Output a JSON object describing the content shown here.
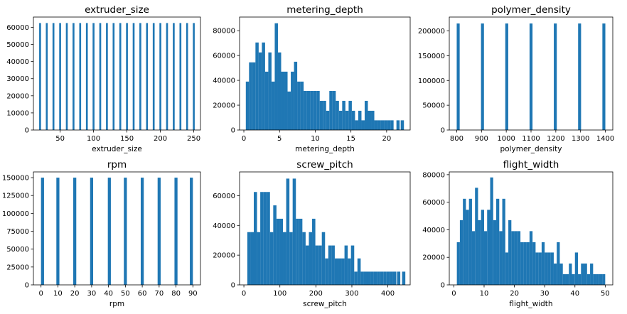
{
  "colors": {
    "bar": "#1f77b4",
    "axis": "#000000",
    "background": "#ffffff"
  },
  "chart_data": [
    {
      "type": "bar",
      "title": "extruder_size",
      "xlabel": "extruder_size",
      "ylabel": "",
      "xlim": [
        10,
        260
      ],
      "ylim": [
        0,
        66000
      ],
      "xticks": [
        50,
        100,
        150,
        200,
        250
      ],
      "yticks": [
        0,
        10000,
        20000,
        30000,
        40000,
        50000,
        60000
      ],
      "bin_width": 2.8,
      "bars": [
        {
          "x": 20,
          "y": 62500
        },
        {
          "x": 30,
          "y": 62500
        },
        {
          "x": 40,
          "y": 62500
        },
        {
          "x": 50,
          "y": 62500
        },
        {
          "x": 60,
          "y": 62500
        },
        {
          "x": 70,
          "y": 62500
        },
        {
          "x": 80,
          "y": 62500
        },
        {
          "x": 90,
          "y": 62500
        },
        {
          "x": 100,
          "y": 62500
        },
        {
          "x": 110,
          "y": 62500
        },
        {
          "x": 120,
          "y": 62500
        },
        {
          "x": 130,
          "y": 62500
        },
        {
          "x": 140,
          "y": 62500
        },
        {
          "x": 150,
          "y": 62500
        },
        {
          "x": 160,
          "y": 62500
        },
        {
          "x": 170,
          "y": 62500
        },
        {
          "x": 180,
          "y": 62500
        },
        {
          "x": 190,
          "y": 62500
        },
        {
          "x": 200,
          "y": 62500
        },
        {
          "x": 210,
          "y": 62500
        },
        {
          "x": 220,
          "y": 62500
        },
        {
          "x": 230,
          "y": 62500
        },
        {
          "x": 240,
          "y": 62500
        },
        {
          "x": 250,
          "y": 62500
        }
      ]
    },
    {
      "type": "bar",
      "title": "metering_depth",
      "xlabel": "metering_depth",
      "ylabel": "",
      "xlim": [
        -0.6,
        23.3
      ],
      "ylim": [
        0,
        91000
      ],
      "xticks": [
        0,
        5,
        10,
        15,
        20
      ],
      "yticks": [
        0,
        20000,
        40000,
        60000,
        80000
      ],
      "bin_width": 0.45,
      "bars": [
        {
          "x": 0.5,
          "y": 39000
        },
        {
          "x": 0.95,
          "y": 54500
        },
        {
          "x": 1.4,
          "y": 54500
        },
        {
          "x": 1.85,
          "y": 70500
        },
        {
          "x": 2.3,
          "y": 62500
        },
        {
          "x": 2.75,
          "y": 70500
        },
        {
          "x": 3.2,
          "y": 47000
        },
        {
          "x": 3.65,
          "y": 62500
        },
        {
          "x": 4.1,
          "y": 39000
        },
        {
          "x": 4.55,
          "y": 86000
        },
        {
          "x": 5.0,
          "y": 62500
        },
        {
          "x": 5.45,
          "y": 47000
        },
        {
          "x": 5.9,
          "y": 47000
        },
        {
          "x": 6.35,
          "y": 31000
        },
        {
          "x": 6.8,
          "y": 47000
        },
        {
          "x": 7.25,
          "y": 55000
        },
        {
          "x": 7.7,
          "y": 39000
        },
        {
          "x": 8.15,
          "y": 39000
        },
        {
          "x": 8.6,
          "y": 31500
        },
        {
          "x": 9.05,
          "y": 31500
        },
        {
          "x": 9.5,
          "y": 31500
        },
        {
          "x": 9.95,
          "y": 31500
        },
        {
          "x": 10.4,
          "y": 31500
        },
        {
          "x": 10.85,
          "y": 23500
        },
        {
          "x": 11.3,
          "y": 23500
        },
        {
          "x": 11.75,
          "y": 15500
        },
        {
          "x": 12.2,
          "y": 31500
        },
        {
          "x": 12.65,
          "y": 31500
        },
        {
          "x": 13.1,
          "y": 23500
        },
        {
          "x": 13.55,
          "y": 15500
        },
        {
          "x": 14.0,
          "y": 23500
        },
        {
          "x": 14.45,
          "y": 15500
        },
        {
          "x": 14.9,
          "y": 23500
        },
        {
          "x": 15.35,
          "y": 15500
        },
        {
          "x": 15.8,
          "y": 7800
        },
        {
          "x": 16.25,
          "y": 15500
        },
        {
          "x": 16.7,
          "y": 7800
        },
        {
          "x": 17.15,
          "y": 23500
        },
        {
          "x": 17.6,
          "y": 15500
        },
        {
          "x": 18.05,
          "y": 15500
        },
        {
          "x": 18.5,
          "y": 7800
        },
        {
          "x": 18.95,
          "y": 7800
        },
        {
          "x": 19.4,
          "y": 7800
        },
        {
          "x": 19.85,
          "y": 7800
        },
        {
          "x": 20.3,
          "y": 7800
        },
        {
          "x": 20.75,
          "y": 7800
        },
        {
          "x": 21.6,
          "y": 7800
        },
        {
          "x": 22.2,
          "y": 7800
        }
      ]
    },
    {
      "type": "bar",
      "title": "polymer_density",
      "xlabel": "polymer_density",
      "ylabel": "",
      "xlim": [
        770,
        1430
      ],
      "ylim": [
        0,
        228000
      ],
      "xticks": [
        800,
        900,
        1000,
        1100,
        1200,
        1300,
        1400
      ],
      "yticks": [
        0,
        50000,
        100000,
        150000,
        200000
      ],
      "bin_width": 12,
      "bars": [
        {
          "x": 806,
          "y": 215000
        },
        {
          "x": 904,
          "y": 215000
        },
        {
          "x": 1002,
          "y": 215000
        },
        {
          "x": 1100,
          "y": 215000
        },
        {
          "x": 1198,
          "y": 215000
        },
        {
          "x": 1296,
          "y": 215000
        },
        {
          "x": 1394,
          "y": 215000
        }
      ]
    },
    {
      "type": "bar",
      "title": "rpm",
      "xlabel": "rpm",
      "ylabel": "",
      "xlim": [
        -4.5,
        94.5
      ],
      "ylim": [
        0,
        158000
      ],
      "xticks": [
        0,
        10,
        20,
        30,
        40,
        50,
        60,
        70,
        80,
        90
      ],
      "yticks": [
        0,
        25000,
        50000,
        75000,
        100000,
        125000,
        150000
      ],
      "bin_width": 1.8,
      "bars": [
        {
          "x": 0.9,
          "y": 150000
        },
        {
          "x": 10.0,
          "y": 150000
        },
        {
          "x": 20.0,
          "y": 150000
        },
        {
          "x": 30.0,
          "y": 150000
        },
        {
          "x": 40.5,
          "y": 150000
        },
        {
          "x": 50.0,
          "y": 150000
        },
        {
          "x": 60.0,
          "y": 150000
        },
        {
          "x": 70.0,
          "y": 150000
        },
        {
          "x": 80.0,
          "y": 150000
        },
        {
          "x": 89.1,
          "y": 150000
        }
      ]
    },
    {
      "type": "bar",
      "title": "screw_pitch",
      "xlabel": "screw_pitch",
      "ylabel": "",
      "xlim": [
        -12,
        462
      ],
      "ylim": [
        0,
        76000
      ],
      "xticks": [
        0,
        100,
        200,
        300,
        400
      ],
      "yticks": [
        0,
        20000,
        40000,
        60000
      ],
      "bin_width": 9,
      "bars": [
        {
          "x": 14,
          "y": 35500
        },
        {
          "x": 23,
          "y": 35500
        },
        {
          "x": 32,
          "y": 62500
        },
        {
          "x": 41,
          "y": 35500
        },
        {
          "x": 50,
          "y": 62500
        },
        {
          "x": 59,
          "y": 62500
        },
        {
          "x": 68,
          "y": 62500
        },
        {
          "x": 77,
          "y": 35500
        },
        {
          "x": 86,
          "y": 53500
        },
        {
          "x": 95,
          "y": 44500
        },
        {
          "x": 104,
          "y": 44500
        },
        {
          "x": 113,
          "y": 35500
        },
        {
          "x": 122,
          "y": 71500
        },
        {
          "x": 131,
          "y": 35500
        },
        {
          "x": 140,
          "y": 71500
        },
        {
          "x": 149,
          "y": 44500
        },
        {
          "x": 158,
          "y": 44500
        },
        {
          "x": 167,
          "y": 35500
        },
        {
          "x": 176,
          "y": 26500
        },
        {
          "x": 185,
          "y": 35500
        },
        {
          "x": 194,
          "y": 44500
        },
        {
          "x": 203,
          "y": 26500
        },
        {
          "x": 212,
          "y": 26500
        },
        {
          "x": 221,
          "y": 35500
        },
        {
          "x": 230,
          "y": 17800
        },
        {
          "x": 239,
          "y": 26500
        },
        {
          "x": 248,
          "y": 26500
        },
        {
          "x": 257,
          "y": 17800
        },
        {
          "x": 266,
          "y": 17800
        },
        {
          "x": 275,
          "y": 17800
        },
        {
          "x": 284,
          "y": 26500
        },
        {
          "x": 293,
          "y": 17800
        },
        {
          "x": 302,
          "y": 26500
        },
        {
          "x": 311,
          "y": 8900
        },
        {
          "x": 320,
          "y": 17800
        },
        {
          "x": 329,
          "y": 8900
        },
        {
          "x": 338,
          "y": 8900
        },
        {
          "x": 347,
          "y": 8900
        },
        {
          "x": 356,
          "y": 8900
        },
        {
          "x": 365,
          "y": 8900
        },
        {
          "x": 374,
          "y": 8900
        },
        {
          "x": 383,
          "y": 8900
        },
        {
          "x": 392,
          "y": 8900
        },
        {
          "x": 401,
          "y": 8900
        },
        {
          "x": 410,
          "y": 8900
        },
        {
          "x": 419,
          "y": 8900
        },
        {
          "x": 430,
          "y": 8900
        },
        {
          "x": 444,
          "y": 8900
        }
      ]
    },
    {
      "type": "bar",
      "title": "flight_width",
      "xlabel": "flight_width",
      "ylabel": "",
      "xlim": [
        -1.5,
        52.5
      ],
      "ylim": [
        0,
        82000
      ],
      "xticks": [
        0,
        10,
        20,
        30,
        40,
        50
      ],
      "yticks": [
        0,
        20000,
        40000,
        60000,
        80000
      ],
      "bin_width": 1.0,
      "bars": [
        {
          "x": 1.5,
          "y": 31000
        },
        {
          "x": 2.5,
          "y": 47000
        },
        {
          "x": 3.5,
          "y": 62500
        },
        {
          "x": 4.5,
          "y": 54500
        },
        {
          "x": 5.5,
          "y": 62500
        },
        {
          "x": 6.5,
          "y": 39000
        },
        {
          "x": 7.5,
          "y": 70500
        },
        {
          "x": 8.5,
          "y": 47000
        },
        {
          "x": 9.5,
          "y": 54500
        },
        {
          "x": 10.5,
          "y": 39000
        },
        {
          "x": 11.5,
          "y": 54500
        },
        {
          "x": 12.5,
          "y": 78000
        },
        {
          "x": 13.5,
          "y": 47000
        },
        {
          "x": 14.5,
          "y": 62500
        },
        {
          "x": 15.5,
          "y": 39000
        },
        {
          "x": 16.5,
          "y": 62500
        },
        {
          "x": 17.5,
          "y": 23500
        },
        {
          "x": 18.5,
          "y": 47000
        },
        {
          "x": 19.5,
          "y": 39000
        },
        {
          "x": 20.5,
          "y": 39000
        },
        {
          "x": 21.5,
          "y": 39000
        },
        {
          "x": 22.5,
          "y": 31000
        },
        {
          "x": 23.5,
          "y": 31000
        },
        {
          "x": 24.5,
          "y": 31000
        },
        {
          "x": 25.5,
          "y": 39000
        },
        {
          "x": 26.5,
          "y": 31000
        },
        {
          "x": 27.5,
          "y": 23500
        },
        {
          "x": 28.5,
          "y": 23500
        },
        {
          "x": 29.5,
          "y": 31000
        },
        {
          "x": 30.5,
          "y": 23500
        },
        {
          "x": 31.5,
          "y": 23500
        },
        {
          "x": 32.5,
          "y": 23500
        },
        {
          "x": 33.5,
          "y": 15500
        },
        {
          "x": 34.5,
          "y": 31000
        },
        {
          "x": 35.5,
          "y": 15500
        },
        {
          "x": 36.5,
          "y": 7800
        },
        {
          "x": 37.5,
          "y": 7800
        },
        {
          "x": 38.5,
          "y": 15500
        },
        {
          "x": 39.5,
          "y": 7800
        },
        {
          "x": 40.5,
          "y": 23500
        },
        {
          "x": 41.5,
          "y": 7800
        },
        {
          "x": 42.5,
          "y": 15500
        },
        {
          "x": 43.5,
          "y": 15500
        },
        {
          "x": 44.5,
          "y": 7800
        },
        {
          "x": 45.5,
          "y": 15500
        },
        {
          "x": 46.5,
          "y": 7800
        },
        {
          "x": 47.5,
          "y": 7800
        },
        {
          "x": 48.5,
          "y": 7800
        },
        {
          "x": 49.5,
          "y": 7800
        }
      ]
    }
  ]
}
